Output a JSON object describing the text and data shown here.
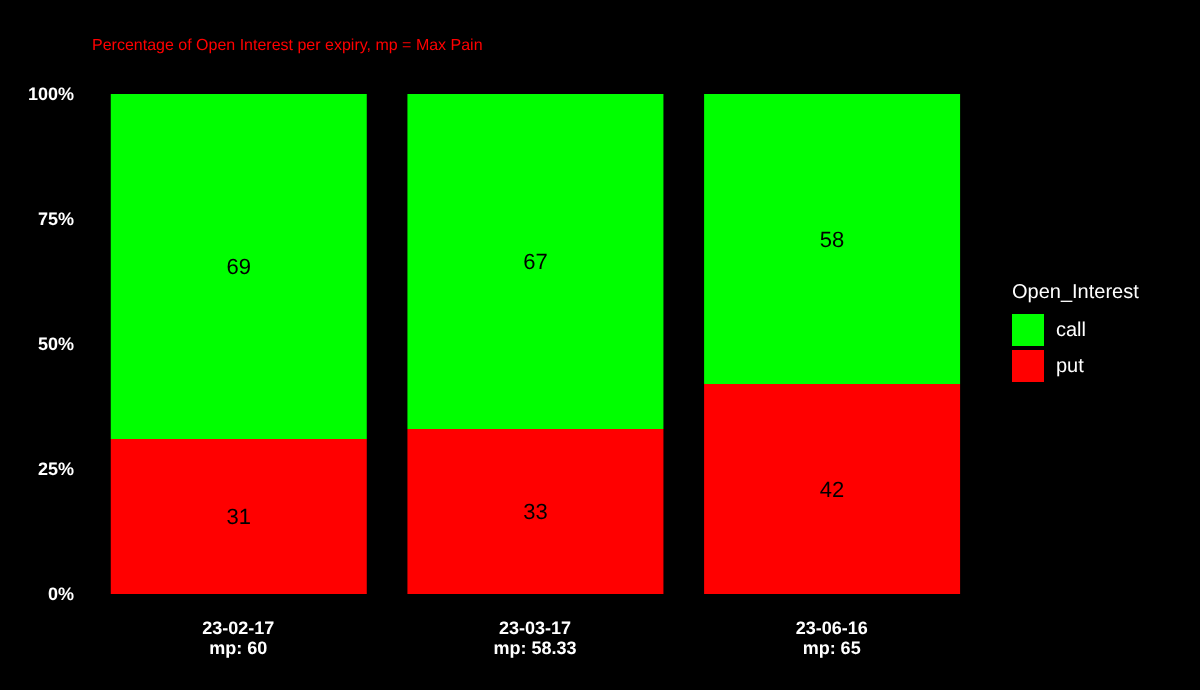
{
  "chart_data": {
    "type": "bar",
    "subtitle": "Percentage of Open Interest per expiry, mp = Max Pain",
    "legend_title": "Open_Interest",
    "categories": [
      "23-02-17\nmp: 60",
      "23-03-17\nmp: 58.33",
      "23-06-16\nmp: 65"
    ],
    "series": [
      {
        "name": "put",
        "color": "#ff0000",
        "values": [
          31,
          33,
          42
        ]
      },
      {
        "name": "call",
        "color": "#00ff00",
        "values": [
          69,
          67,
          58
        ]
      }
    ],
    "stacked": true,
    "ylim": [
      0,
      100
    ],
    "yticks": [
      {
        "value": 0,
        "label": "0%"
      },
      {
        "value": 25,
        "label": "25%"
      },
      {
        "value": 50,
        "label": "50%"
      },
      {
        "value": 75,
        "label": "75%"
      },
      {
        "value": 100,
        "label": "100%"
      }
    ],
    "data_labels": true,
    "legend": "right",
    "grid": false
  }
}
